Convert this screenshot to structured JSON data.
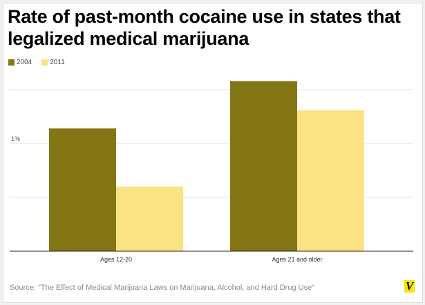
{
  "chart_data": {
    "type": "bar",
    "title": "Rate of past-month cocaine use in states that legalized medical marijuana",
    "categories": [
      "Ages 12-20",
      "Ages 21 and older"
    ],
    "series": [
      {
        "name": "2004",
        "color": "#857615",
        "values": [
          1.14,
          1.58
        ]
      },
      {
        "name": "2011",
        "color": "#fbe283",
        "values": [
          0.6,
          1.31
        ]
      }
    ],
    "xlabel": "",
    "ylabel": "",
    "ylim": [
      0,
      1.5
    ],
    "y_ticks": [
      0.5,
      1.0,
      1.5
    ],
    "y_tick_labels": {
      "1": "1%"
    },
    "grid": true,
    "legend_position": "top-left",
    "source": "Source: \"The Effect of Medical Marijuana Laws on Marijuana, Alcohol, and Hard Drug Use\""
  },
  "brand": {
    "logo_text": "V",
    "logo_color": "#f2e800"
  }
}
